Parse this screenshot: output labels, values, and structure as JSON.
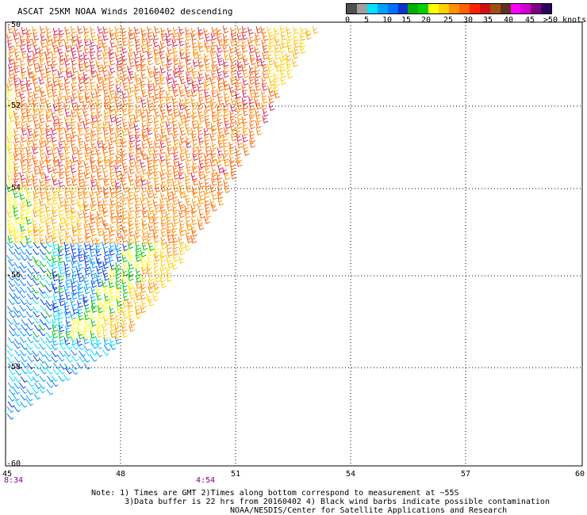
{
  "title": "ASCAT 25KM NOAA Winds 20160402 descending",
  "legend": {
    "colors": [
      "#505050",
      "#a0a0a0",
      "#00e0ff",
      "#00a0ff",
      "#0070ff",
      "#1030d0",
      "#00b000",
      "#00d000",
      "#ffff00",
      "#ffd000",
      "#ff9000",
      "#ff6000",
      "#ff2000",
      "#d01010",
      "#a05010",
      "#603020",
      "#ff00ff",
      "#d000d0",
      "#800080",
      "#300060"
    ],
    "labels": [
      "0",
      "5",
      "10",
      "15",
      "20",
      "25",
      "30",
      "35",
      "40",
      "45",
      ">50 knots"
    ]
  },
  "axes": {
    "lat_labels": [
      "-50",
      "-52",
      "-54",
      "-56",
      "-58",
      "-60"
    ],
    "lon_labels": [
      "45",
      "48",
      "51",
      "54",
      "57",
      "60"
    ]
  },
  "times": [
    "8:34",
    "4:54"
  ],
  "notes": "Note: 1) Times are GMT 2)Times along bottom correspond to measurement at ~55S\n       3)Data buffer is 22 hrs from 20160402 4) Black wind barbs indicate possible contamination",
  "credit": "NOAA/NESDIS/Center for Satellite Applications and Research"
}
